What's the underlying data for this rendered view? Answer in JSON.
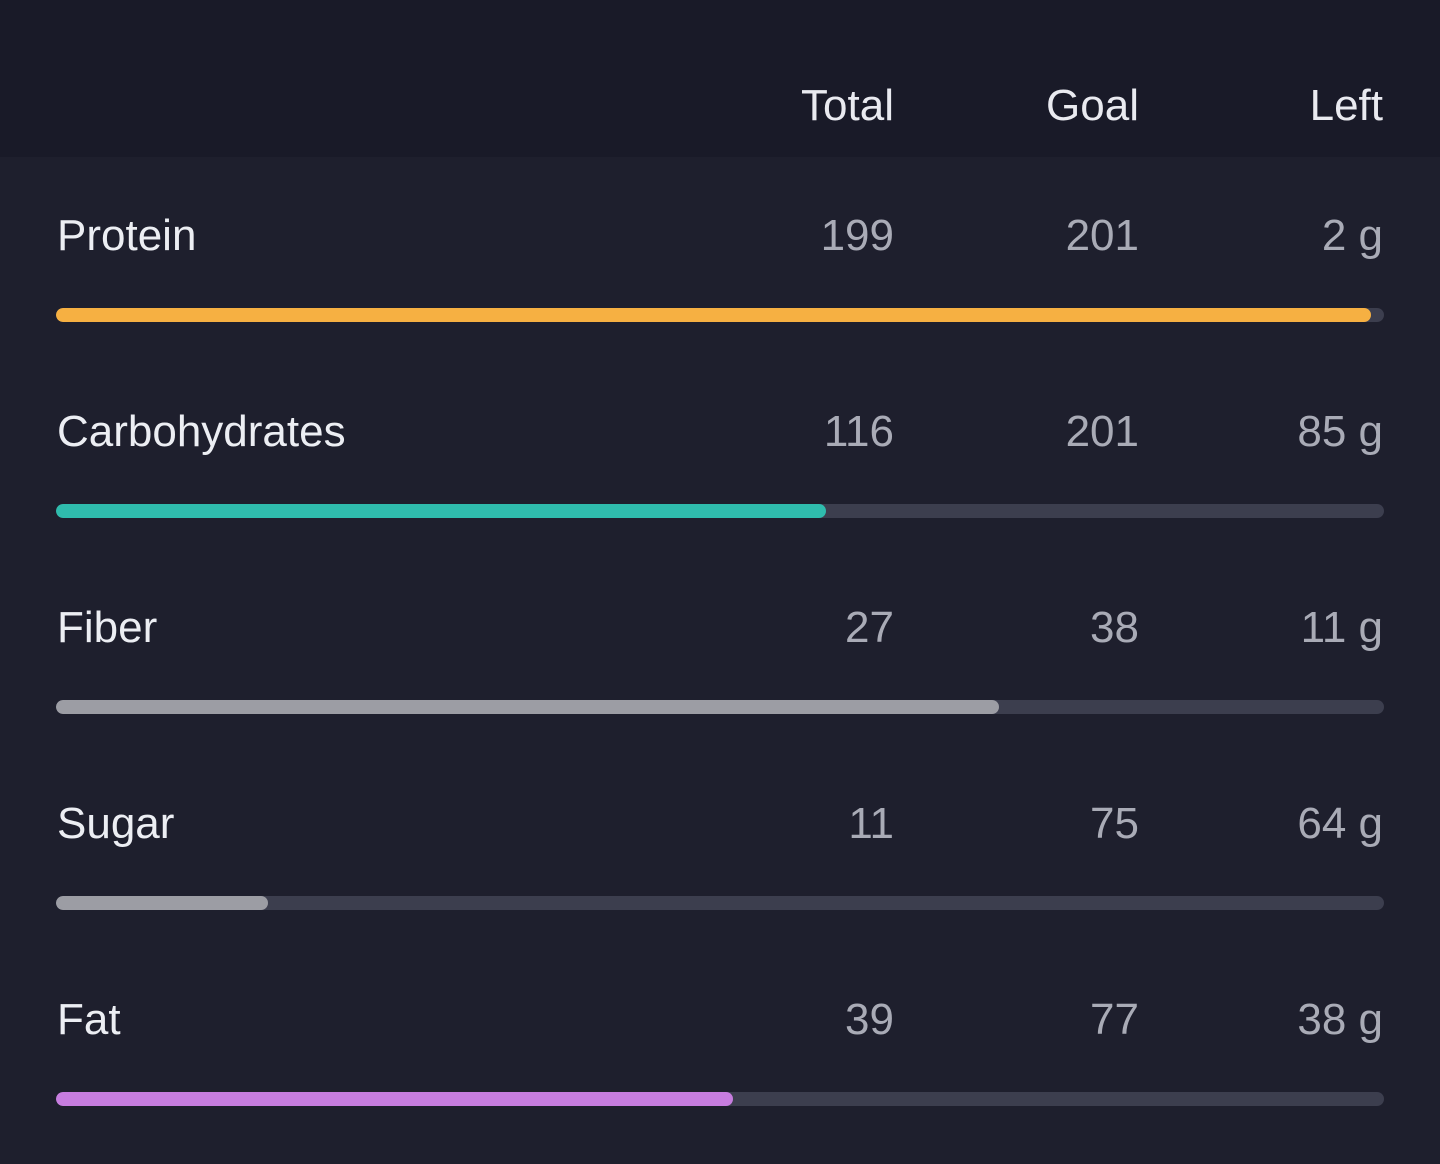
{
  "header": {
    "total_label": "Total",
    "goal_label": "Goal",
    "left_label": "Left"
  },
  "nutrients": [
    {
      "name": "Protein",
      "total": "199",
      "goal": "201",
      "left": "2 g",
      "progress": 0.99,
      "color": "#f6b042"
    },
    {
      "name": "Carbohydrates",
      "total": "116",
      "goal": "201",
      "left": "85 g",
      "progress": 0.58,
      "color": "#2fbcad"
    },
    {
      "name": "Fiber",
      "total": "27",
      "goal": "38",
      "left": "11 g",
      "progress": 0.71,
      "color": "#9c9da4"
    },
    {
      "name": "Sugar",
      "total": "11",
      "goal": "75",
      "left": "64 g",
      "progress": 0.16,
      "color": "#9c9da4"
    },
    {
      "name": "Fat",
      "total": "39",
      "goal": "77",
      "left": "38 g",
      "progress": 0.51,
      "color": "#c77ddf"
    }
  ],
  "colors": {
    "background": "#1e1f2d",
    "header_background": "#191a28",
    "track": "#3c3e4e"
  }
}
